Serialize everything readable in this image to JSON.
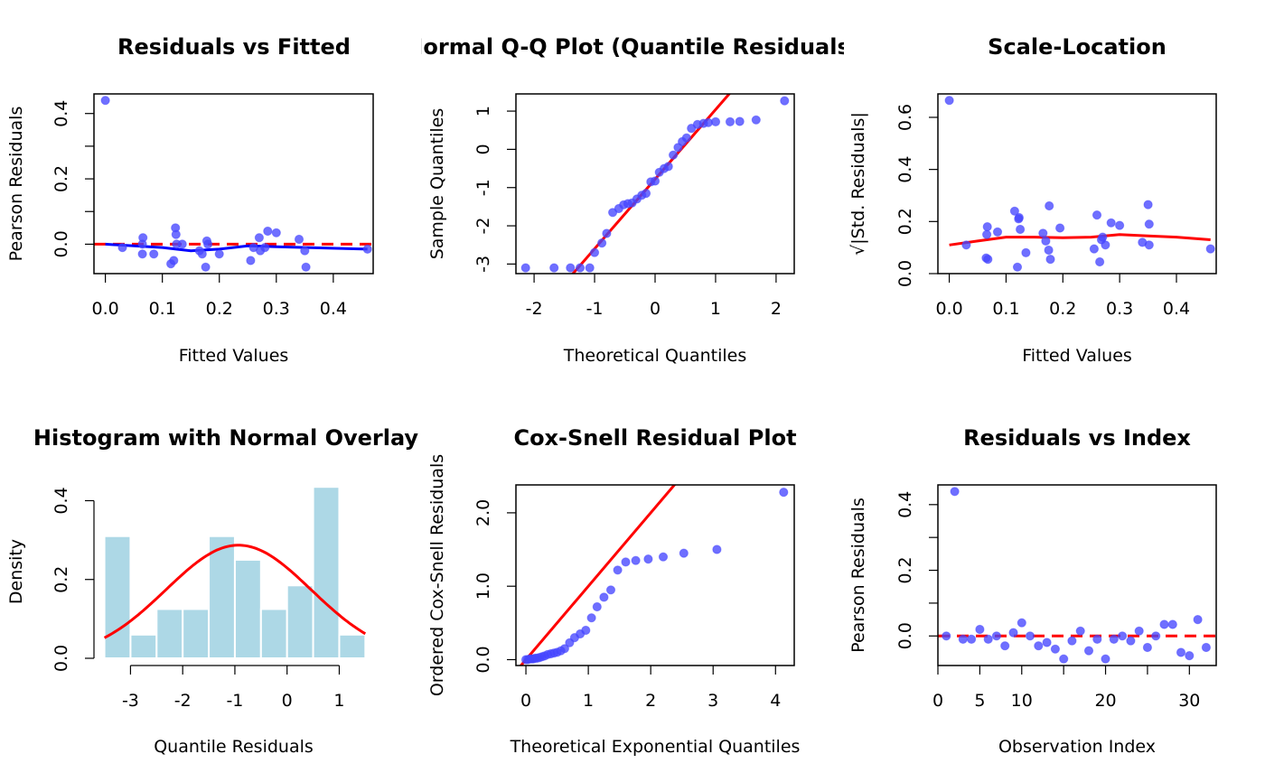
{
  "chart_data": [
    {
      "type": "scatter",
      "title": "Residuals vs Fitted",
      "xlabel": "Fitted Values",
      "ylabel": "Pearson Residuals",
      "xlim": [
        -0.02,
        0.47
      ],
      "ylim": [
        -0.09,
        0.46
      ],
      "xticks": [
        0.0,
        0.1,
        0.2,
        0.3,
        0.4
      ],
      "xtick_labels": [
        "0.0",
        "0.1",
        "0.2",
        "0.3",
        "0.4"
      ],
      "yticks": [
        0.0,
        0.1,
        0.2,
        0.3,
        0.4
      ],
      "ytick_labels": [
        "0.0",
        "",
        "0.2",
        "",
        "0.4"
      ],
      "points": [
        [
          0.0,
          0.44
        ],
        [
          0.03,
          -0.01
        ],
        [
          0.065,
          -0.03
        ],
        [
          0.065,
          0.0
        ],
        [
          0.066,
          0.02
        ],
        [
          0.085,
          -0.03
        ],
        [
          0.115,
          -0.06
        ],
        [
          0.12,
          -0.05
        ],
        [
          0.123,
          0.05
        ],
        [
          0.124,
          0.03
        ],
        [
          0.125,
          0.0
        ],
        [
          0.135,
          0.0
        ],
        [
          0.165,
          -0.02
        ],
        [
          0.17,
          -0.03
        ],
        [
          0.176,
          -0.07
        ],
        [
          0.178,
          0.01
        ],
        [
          0.18,
          0.0
        ],
        [
          0.2,
          -0.03
        ],
        [
          0.255,
          -0.05
        ],
        [
          0.26,
          -0.01
        ],
        [
          0.27,
          0.02
        ],
        [
          0.272,
          -0.02
        ],
        [
          0.28,
          -0.01
        ],
        [
          0.285,
          0.04
        ],
        [
          0.3,
          0.035
        ],
        [
          0.34,
          0.015
        ],
        [
          0.35,
          -0.02
        ],
        [
          0.352,
          -0.07
        ],
        [
          0.46,
          -0.015
        ]
      ],
      "smooth": [
        [
          0.0,
          0.0
        ],
        [
          0.1,
          -0.01
        ],
        [
          0.15,
          -0.02
        ],
        [
          0.2,
          -0.015
        ],
        [
          0.25,
          -0.005
        ],
        [
          0.3,
          -0.008
        ],
        [
          0.46,
          -0.015
        ]
      ],
      "hline": 0,
      "colors": {
        "points": "#4646ff",
        "smooth": "#0000ff",
        "hline": "#ff0000"
      }
    },
    {
      "type": "scatter",
      "title": "Normal Q-Q Plot (Quantile Residuals)",
      "xlabel": "Theoretical Quantiles",
      "ylabel": "Sample Quantiles",
      "xlim": [
        -2.3,
        2.3
      ],
      "ylim": [
        -3.25,
        1.45
      ],
      "xticks": [
        -2,
        -1,
        0,
        1,
        2
      ],
      "xtick_labels": [
        "-2",
        "-1",
        "0",
        "1",
        "2"
      ],
      "yticks": [
        -3,
        -2,
        -1,
        0,
        1
      ],
      "ytick_labels": [
        "-3",
        "-2",
        "-1",
        "0",
        "1"
      ],
      "points": [
        [
          -2.14,
          -3.1
        ],
        [
          -1.67,
          -3.1
        ],
        [
          -1.4,
          -3.1
        ],
        [
          -1.24,
          -3.1
        ],
        [
          -1.08,
          -3.1
        ],
        [
          -1.0,
          -2.7
        ],
        [
          -0.88,
          -2.45
        ],
        [
          -0.8,
          -2.2
        ],
        [
          -0.7,
          -1.65
        ],
        [
          -0.6,
          -1.55
        ],
        [
          -0.52,
          -1.45
        ],
        [
          -0.45,
          -1.42
        ],
        [
          -0.38,
          -1.4
        ],
        [
          -0.3,
          -1.3
        ],
        [
          -0.22,
          -1.2
        ],
        [
          -0.15,
          -1.15
        ],
        [
          -0.07,
          -0.85
        ],
        [
          0.0,
          -0.83
        ],
        [
          0.07,
          -0.6
        ],
        [
          0.15,
          -0.5
        ],
        [
          0.22,
          -0.45
        ],
        [
          0.3,
          -0.15
        ],
        [
          0.38,
          0.05
        ],
        [
          0.45,
          0.2
        ],
        [
          0.52,
          0.3
        ],
        [
          0.6,
          0.55
        ],
        [
          0.7,
          0.65
        ],
        [
          0.8,
          0.68
        ],
        [
          0.88,
          0.7
        ],
        [
          1.0,
          0.72
        ],
        [
          1.24,
          0.72
        ],
        [
          1.4,
          0.73
        ],
        [
          1.67,
          0.77
        ],
        [
          2.14,
          1.27
        ]
      ],
      "qqline": {
        "intercept": -0.78,
        "slope": 1.82
      },
      "colors": {
        "points": "#4646ff",
        "line": "#ff0000"
      }
    },
    {
      "type": "scatter",
      "title": "Scale-Location",
      "xlabel": "Fitted Values",
      "ylabel": "√|Std. Residuals|",
      "xlim": [
        -0.02,
        0.47
      ],
      "ylim": [
        0.0,
        0.69
      ],
      "xticks": [
        0.0,
        0.1,
        0.2,
        0.3,
        0.4
      ],
      "xtick_labels": [
        "0.0",
        "0.1",
        "0.2",
        "0.3",
        "0.4"
      ],
      "yticks": [
        0.0,
        0.2,
        0.4,
        0.6
      ],
      "ytick_labels": [
        "0.0",
        "0.2",
        "0.4",
        "0.6"
      ],
      "points": [
        [
          0.0,
          0.665
        ],
        [
          0.03,
          0.11
        ],
        [
          0.065,
          0.06
        ],
        [
          0.066,
          0.15
        ],
        [
          0.067,
          0.18
        ],
        [
          0.068,
          0.055
        ],
        [
          0.085,
          0.16
        ],
        [
          0.115,
          0.24
        ],
        [
          0.12,
          0.025
        ],
        [
          0.122,
          0.21
        ],
        [
          0.123,
          0.215
        ],
        [
          0.125,
          0.17
        ],
        [
          0.135,
          0.08
        ],
        [
          0.165,
          0.155
        ],
        [
          0.17,
          0.125
        ],
        [
          0.175,
          0.09
        ],
        [
          0.176,
          0.26
        ],
        [
          0.178,
          0.055
        ],
        [
          0.195,
          0.175
        ],
        [
          0.255,
          0.095
        ],
        [
          0.26,
          0.225
        ],
        [
          0.265,
          0.045
        ],
        [
          0.268,
          0.13
        ],
        [
          0.27,
          0.14
        ],
        [
          0.275,
          0.11
        ],
        [
          0.285,
          0.195
        ],
        [
          0.3,
          0.185
        ],
        [
          0.34,
          0.12
        ],
        [
          0.35,
          0.265
        ],
        [
          0.352,
          0.19
        ],
        [
          0.352,
          0.11
        ],
        [
          0.46,
          0.095
        ]
      ],
      "smooth": [
        [
          0.0,
          0.11
        ],
        [
          0.05,
          0.125
        ],
        [
          0.1,
          0.14
        ],
        [
          0.15,
          0.14
        ],
        [
          0.2,
          0.138
        ],
        [
          0.25,
          0.14
        ],
        [
          0.3,
          0.15
        ],
        [
          0.35,
          0.145
        ],
        [
          0.4,
          0.14
        ],
        [
          0.46,
          0.13
        ]
      ],
      "colors": {
        "points": "#4646ff",
        "smooth": "#ff0000"
      }
    },
    {
      "type": "bar",
      "title": "Histogram with Normal Overlay",
      "xlabel": "Quantile Residuals",
      "ylabel": "Density",
      "xlim": [
        -3.7,
        1.65
      ],
      "ylim": [
        0.0,
        0.44
      ],
      "xticks": [
        -3,
        -2,
        -1,
        0,
        1
      ],
      "xtick_labels": [
        "-3",
        "-2",
        "-1",
        "0",
        "1"
      ],
      "yticks": [
        0.0,
        0.2,
        0.4
      ],
      "ytick_labels": [
        "0.0",
        "0.2",
        "0.4"
      ],
      "bin_edges": [
        -3.5,
        -3.0,
        -2.5,
        -2.0,
        -1.5,
        -1.0,
        -0.5,
        0.0,
        0.5,
        1.0,
        1.5
      ],
      "values": [
        0.31,
        0.06,
        0.125,
        0.125,
        0.31,
        0.25,
        0.125,
        0.185,
        0.435,
        0.06
      ],
      "normal_curve": {
        "mean": -0.93,
        "sd": 1.39
      },
      "colors": {
        "bars": "#add8e6",
        "curve": "#ff0000"
      }
    },
    {
      "type": "scatter",
      "title": "Cox-Snell Residual Plot",
      "xlabel": "Theoretical Exponential Quantiles",
      "ylabel": "Ordered Cox-Snell Residuals",
      "xlim": [
        -0.16,
        4.3
      ],
      "ylim": [
        -0.08,
        2.38
      ],
      "xticks": [
        0,
        1,
        2,
        3,
        4
      ],
      "xtick_labels": [
        "0",
        "1",
        "2",
        "3",
        "4"
      ],
      "yticks": [
        0.0,
        1.0,
        2.0
      ],
      "ytick_labels": [
        "0.0",
        "1.0",
        "2.0"
      ],
      "points": [
        [
          0.0,
          0.0
        ],
        [
          0.03,
          0.0
        ],
        [
          0.06,
          0.01
        ],
        [
          0.09,
          0.01
        ],
        [
          0.12,
          0.01
        ],
        [
          0.15,
          0.02
        ],
        [
          0.18,
          0.02
        ],
        [
          0.22,
          0.03
        ],
        [
          0.26,
          0.04
        ],
        [
          0.3,
          0.05
        ],
        [
          0.35,
          0.07
        ],
        [
          0.4,
          0.08
        ],
        [
          0.45,
          0.09
        ],
        [
          0.5,
          0.1
        ],
        [
          0.56,
          0.12
        ],
        [
          0.62,
          0.15
        ],
        [
          0.7,
          0.23
        ],
        [
          0.78,
          0.3
        ],
        [
          0.87,
          0.35
        ],
        [
          0.96,
          0.4
        ],
        [
          1.05,
          0.57
        ],
        [
          1.14,
          0.72
        ],
        [
          1.25,
          0.85
        ],
        [
          1.36,
          0.95
        ],
        [
          1.47,
          1.22
        ],
        [
          1.6,
          1.33
        ],
        [
          1.76,
          1.35
        ],
        [
          1.96,
          1.37
        ],
        [
          2.2,
          1.4
        ],
        [
          2.53,
          1.45
        ],
        [
          3.06,
          1.5
        ],
        [
          4.13,
          2.28
        ]
      ],
      "reference_line": {
        "intercept": 0,
        "slope": 1
      },
      "colors": {
        "points": "#4646ff",
        "line": "#ff0000"
      }
    },
    {
      "type": "scatter",
      "title": "Residuals vs Index",
      "xlabel": "Observation Index",
      "ylabel": "Pearson Residuals",
      "xlim": [
        0,
        33.2
      ],
      "ylim": [
        -0.09,
        0.46
      ],
      "xticks": [
        0,
        5,
        10,
        15,
        20,
        25,
        30
      ],
      "xtick_labels": [
        "0",
        "5",
        "10",
        "",
        "20",
        "",
        "30"
      ],
      "yticks": [
        0.0,
        0.1,
        0.2,
        0.3,
        0.4
      ],
      "ytick_labels": [
        "0.0",
        "",
        "0.2",
        "",
        "0.4"
      ],
      "points": [
        [
          1,
          0.0
        ],
        [
          2,
          0.44
        ],
        [
          3,
          -0.01
        ],
        [
          4,
          -0.01
        ],
        [
          5,
          0.02
        ],
        [
          6,
          -0.01
        ],
        [
          7,
          0.0
        ],
        [
          8,
          -0.03
        ],
        [
          9,
          0.01
        ],
        [
          10,
          0.04
        ],
        [
          11,
          0.0
        ],
        [
          12,
          -0.03
        ],
        [
          13,
          -0.02
        ],
        [
          14,
          -0.04
        ],
        [
          15,
          -0.07
        ],
        [
          16,
          -0.015
        ],
        [
          17,
          0.015
        ],
        [
          18,
          -0.045
        ],
        [
          19,
          -0.01
        ],
        [
          20,
          -0.07
        ],
        [
          21,
          -0.01
        ],
        [
          22,
          0.0
        ],
        [
          23,
          -0.015
        ],
        [
          24,
          0.015
        ],
        [
          25,
          -0.035
        ],
        [
          26,
          0.0
        ],
        [
          27,
          0.035
        ],
        [
          28,
          0.035
        ],
        [
          29,
          -0.05
        ],
        [
          30,
          -0.06
        ],
        [
          31,
          0.05
        ],
        [
          32,
          -0.035
        ]
      ],
      "hline": 0,
      "colors": {
        "points": "#4646ff",
        "hline": "#ff0000"
      }
    }
  ]
}
